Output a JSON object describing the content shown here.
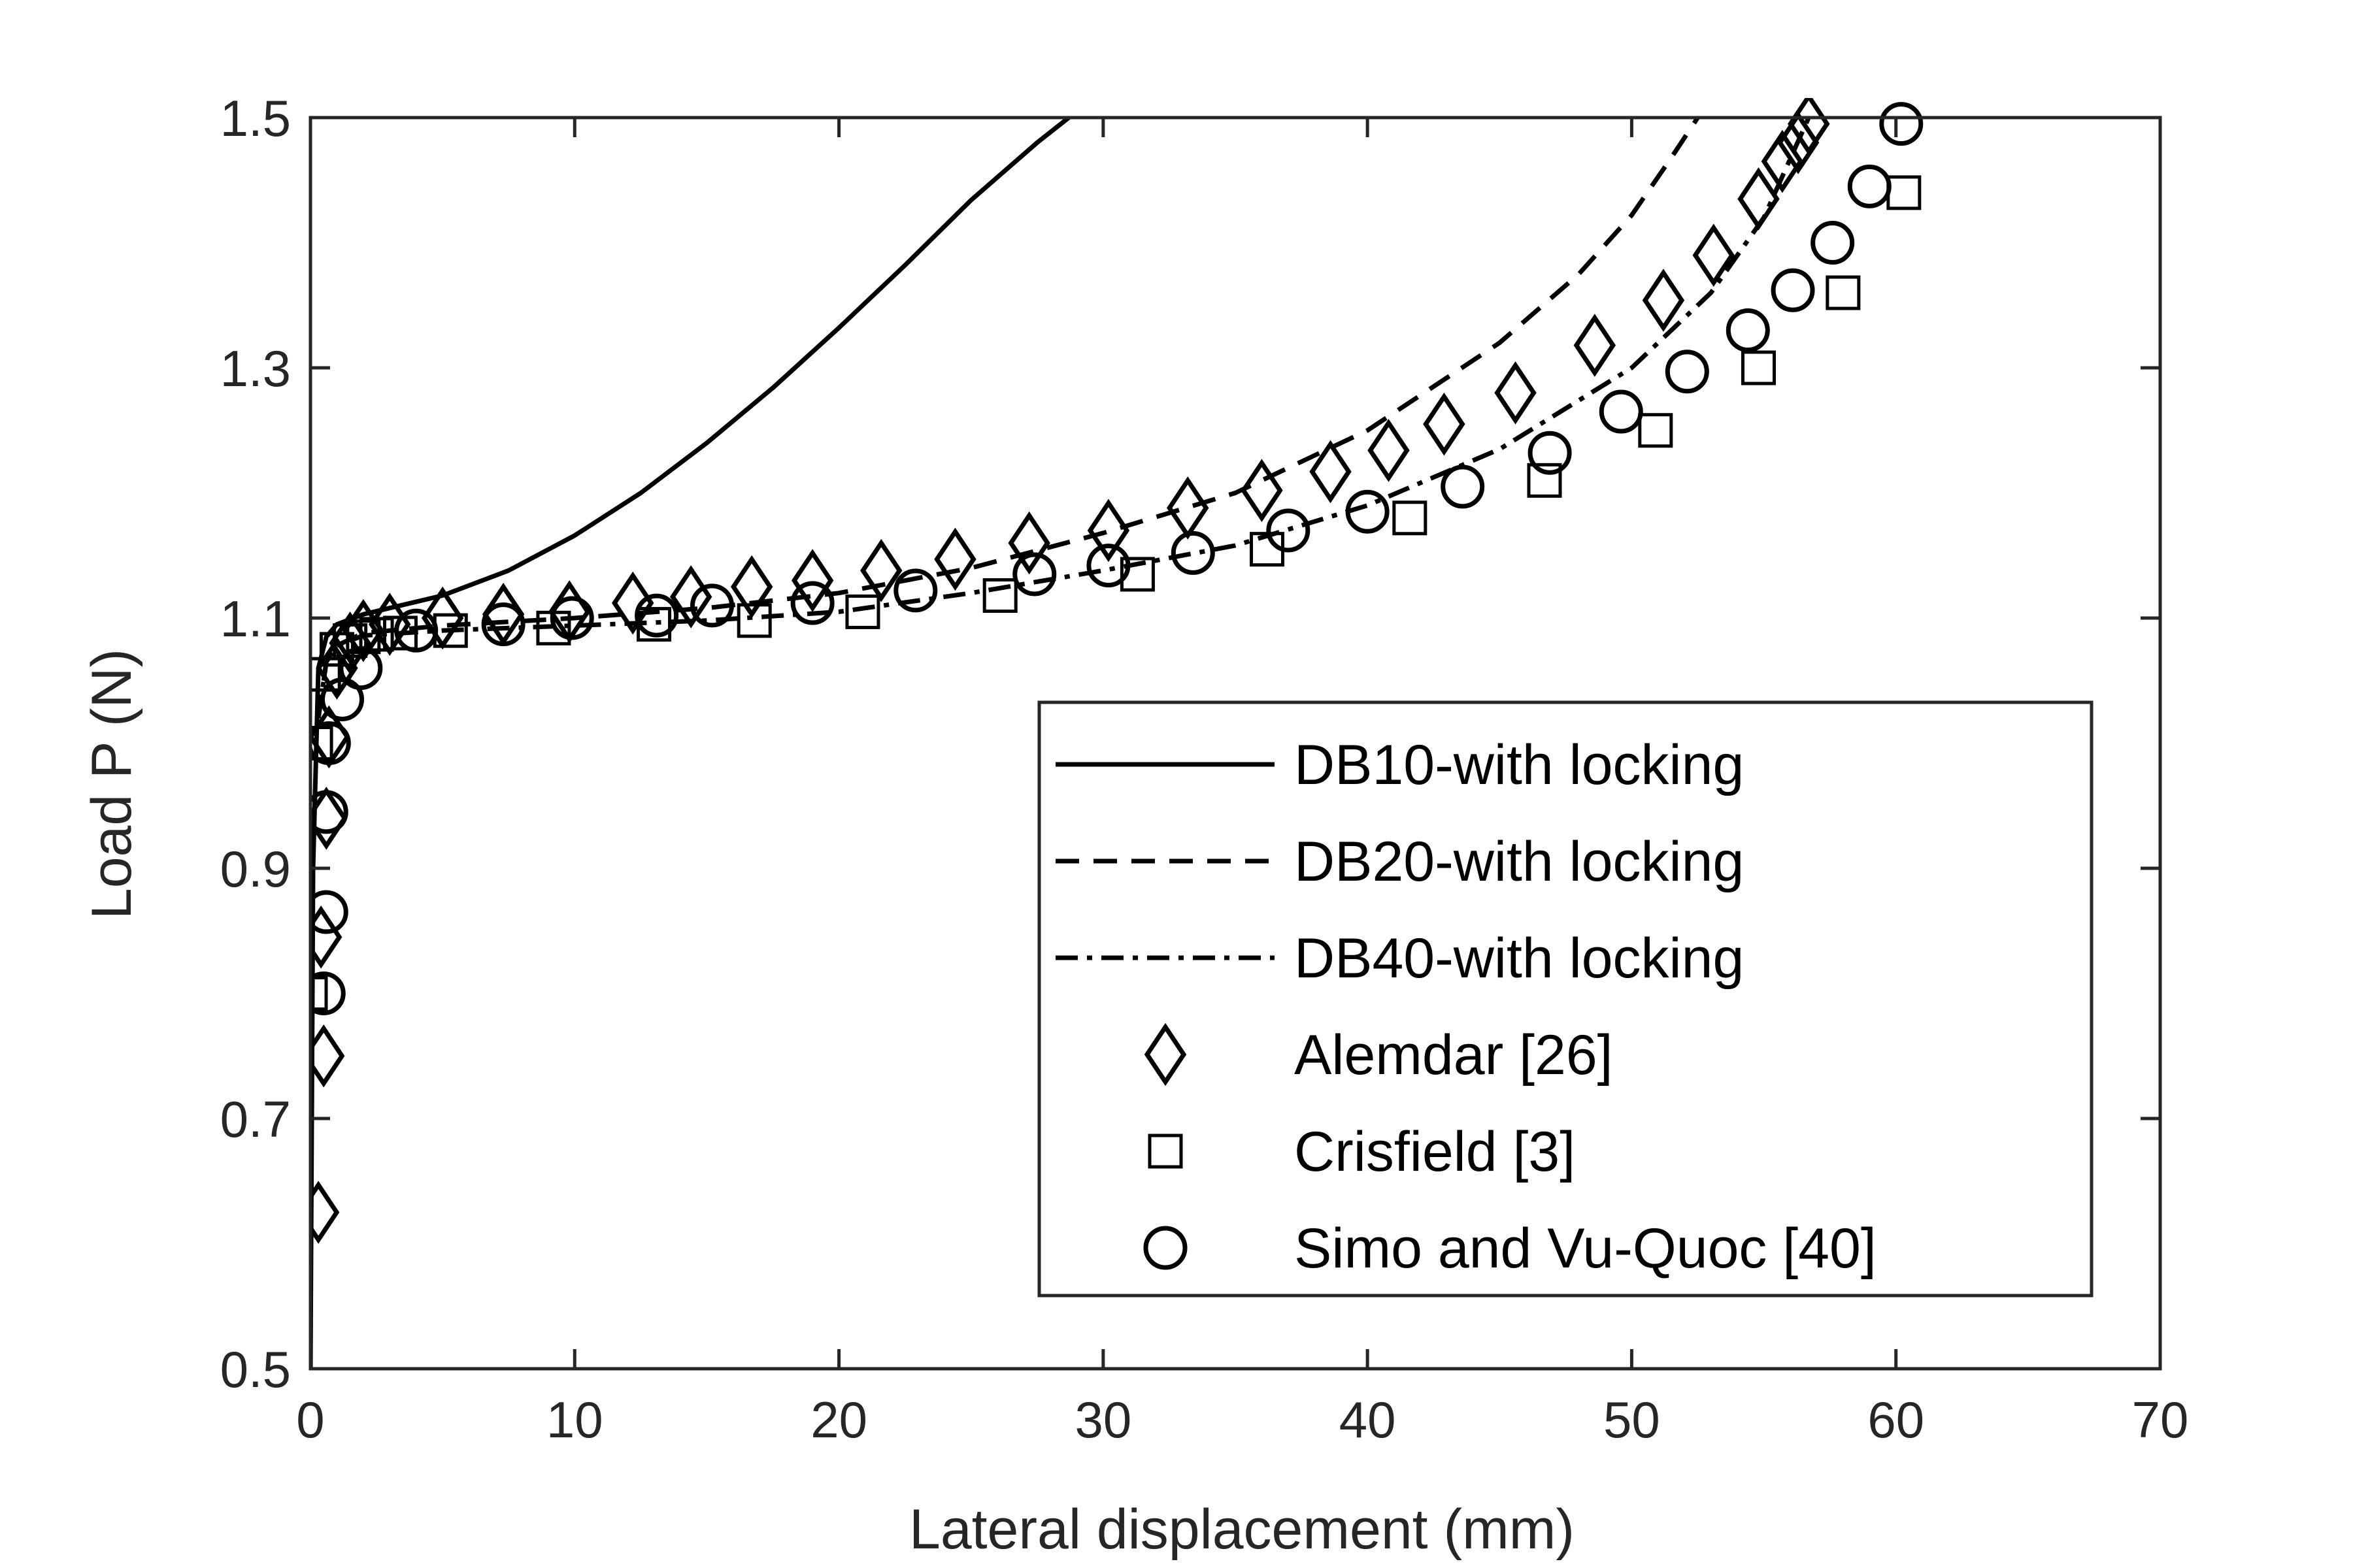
{
  "chart_data": {
    "type": "line",
    "xlabel": "Lateral displacement (mm)",
    "ylabel": "Load P (N)",
    "xlim": [
      0,
      70
    ],
    "ylim": [
      0.5,
      1.5
    ],
    "xticks": [
      "0",
      "10",
      "20",
      "30",
      "40",
      "50",
      "60",
      "70"
    ],
    "yticks": [
      "0.5",
      "0.7",
      "0.9",
      "1.1",
      "1.3",
      "1.5"
    ],
    "grid": false,
    "legend_position": "bottom-right",
    "series": [
      {
        "name": "DB10-with locking",
        "kind": "line",
        "dash": "solid",
        "x": [
          0,
          0.1,
          0.3,
          0.6,
          1.0,
          2.0,
          3.0,
          5.0,
          7.5,
          10.0,
          12.5,
          15.0,
          17.5,
          20.0,
          22.5,
          25.0,
          27.5,
          28.7
        ],
        "y": [
          0.5,
          0.9,
          1.06,
          1.085,
          1.095,
          1.103,
          1.108,
          1.118,
          1.138,
          1.166,
          1.2,
          1.24,
          1.284,
          1.332,
          1.382,
          1.434,
          1.48,
          1.5
        ]
      },
      {
        "name": "DB20-with locking",
        "kind": "line",
        "dash": "dashed",
        "x": [
          0.3,
          0.6,
          1.0,
          2.0,
          5.0,
          10.0,
          15.0,
          20.0,
          25.0,
          30.0,
          35.0,
          40.0,
          45.0,
          48.0,
          50.0,
          51.5,
          52.5
        ],
        "y": [
          1.02,
          1.065,
          1.078,
          1.088,
          1.094,
          1.1,
          1.108,
          1.12,
          1.14,
          1.168,
          1.2,
          1.25,
          1.32,
          1.375,
          1.422,
          1.468,
          1.5
        ]
      },
      {
        "name": "DB40-with locking",
        "kind": "line",
        "dash": "dashdot",
        "x": [
          0.3,
          0.6,
          1.0,
          2.0,
          5.0,
          10.0,
          15.0,
          20.0,
          25.0,
          30.0,
          35.0,
          40.0,
          45.0,
          50.0,
          53.0,
          55.0,
          56.7
        ],
        "y": [
          1.02,
          1.065,
          1.078,
          1.086,
          1.09,
          1.094,
          1.098,
          1.105,
          1.12,
          1.138,
          1.158,
          1.19,
          1.235,
          1.3,
          1.36,
          1.42,
          1.5
        ]
      },
      {
        "name": "Alemdar [26]",
        "kind": "marker",
        "marker": "diamond",
        "x": [
          0.3,
          0.5,
          0.4,
          0.6,
          0.7,
          1.0,
          1.5,
          2.0,
          3.0,
          5.0,
          7.3,
          9.8,
          12.2,
          14.4,
          16.7,
          19.0,
          21.6,
          24.4,
          27.2,
          30.2,
          33.2,
          36.0,
          38.6,
          40.8,
          42.9,
          45.6,
          48.6,
          51.2,
          53.1,
          54.8,
          55.7,
          56.3,
          56.7
        ],
        "y": [
          0.625,
          0.75,
          0.845,
          0.94,
          1.005,
          1.06,
          1.08,
          1.09,
          1.095,
          1.1,
          1.103,
          1.105,
          1.112,
          1.117,
          1.125,
          1.13,
          1.138,
          1.147,
          1.16,
          1.17,
          1.188,
          1.202,
          1.217,
          1.234,
          1.255,
          1.28,
          1.318,
          1.354,
          1.39,
          1.435,
          1.465,
          1.48,
          1.495
        ]
      },
      {
        "name": "Crisfield [3]",
        "kind": "marker",
        "marker": "square",
        "x": [
          0,
          0.2,
          0.5,
          1.0,
          1.5,
          2.0,
          2.5,
          3.4,
          5.3,
          9.2,
          13.0,
          16.8,
          20.9,
          26.1,
          31.3,
          36.2,
          41.6,
          46.7,
          50.9,
          54.8,
          58.0,
          60.3
        ],
        "y": [
          0.8,
          1.0,
          1.055,
          1.075,
          1.082,
          1.085,
          1.087,
          1.088,
          1.09,
          1.092,
          1.095,
          1.098,
          1.105,
          1.118,
          1.135,
          1.155,
          1.18,
          1.21,
          1.25,
          1.3,
          1.36,
          1.44
        ]
      },
      {
        "name": "Simo and Vu-Quoc [40]",
        "kind": "marker",
        "marker": "circle",
        "x": [
          0.5,
          0.6,
          0.6,
          0.7,
          1.2,
          1.9,
          4.0,
          7.3,
          9.9,
          13.1,
          15.2,
          19.0,
          22.9,
          27.4,
          30.2,
          33.4,
          37.0,
          40.0,
          43.6,
          46.9,
          49.6,
          52.1,
          54.4,
          56.1,
          57.6,
          59.0,
          60.2
        ],
        "y": [
          0.8,
          0.865,
          0.945,
          1.0,
          1.035,
          1.06,
          1.09,
          1.095,
          1.1,
          1.102,
          1.11,
          1.112,
          1.122,
          1.135,
          1.142,
          1.152,
          1.17,
          1.185,
          1.205,
          1.232,
          1.265,
          1.297,
          1.33,
          1.362,
          1.4,
          1.445,
          1.495
        ]
      }
    ]
  }
}
